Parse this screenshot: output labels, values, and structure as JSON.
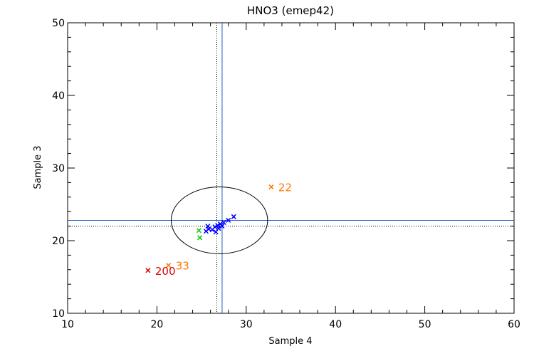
{
  "chart_data": {
    "type": "scatter",
    "title": "HNO3 (emep42)",
    "xlabel": "Sample 4",
    "ylabel": "Sample 3",
    "xlim": [
      10,
      60
    ],
    "ylim": [
      10,
      50
    ],
    "x_ticks": [
      10,
      20,
      30,
      40,
      50,
      60
    ],
    "y_ticks": [
      10,
      20,
      30,
      40,
      50
    ],
    "x_tick_labels": [
      "10",
      "20",
      "30",
      "40",
      "50",
      "60"
    ],
    "y_tick_labels": [
      "10",
      "20",
      "30",
      "40",
      "50"
    ],
    "grid": false,
    "reference_lines": {
      "solid": {
        "x": 27.3,
        "y": 22.8,
        "color": "#1f5fbf"
      },
      "dotted": {
        "x": 26.7,
        "y": 22.0,
        "color": "#000000"
      }
    },
    "ellipse": {
      "cx": 27.0,
      "cy": 22.8,
      "rx": 5.4,
      "ry": 4.6,
      "color": "#000000"
    },
    "series": [
      {
        "color": "#0000ff",
        "points": [
          {
            "x": 25.5,
            "y": 21.3
          },
          {
            "x": 25.8,
            "y": 21.6
          },
          {
            "x": 26.2,
            "y": 21.5
          },
          {
            "x": 26.5,
            "y": 21.9
          },
          {
            "x": 26.8,
            "y": 22.1
          },
          {
            "x": 27.1,
            "y": 22.3
          },
          {
            "x": 27.5,
            "y": 22.5
          },
          {
            "x": 28.0,
            "y": 22.8
          },
          {
            "x": 28.6,
            "y": 23.3
          },
          {
            "x": 26.6,
            "y": 21.2
          },
          {
            "x": 25.7,
            "y": 22.0
          },
          {
            "x": 27.3,
            "y": 22.0
          },
          {
            "x": 26.9,
            "y": 21.7
          }
        ]
      },
      {
        "color": "#00cc00",
        "points": [
          {
            "x": 24.7,
            "y": 21.4
          },
          {
            "x": 24.8,
            "y": 20.4
          }
        ]
      },
      {
        "color": "#ff7700",
        "points": [
          {
            "x": 32.8,
            "y": 27.4,
            "label": "22"
          },
          {
            "x": 21.3,
            "y": 16.6,
            "label": "33"
          }
        ]
      },
      {
        "color": "#dd0000",
        "points": [
          {
            "x": 19.0,
            "y": 15.9,
            "label": "200"
          }
        ]
      }
    ]
  }
}
